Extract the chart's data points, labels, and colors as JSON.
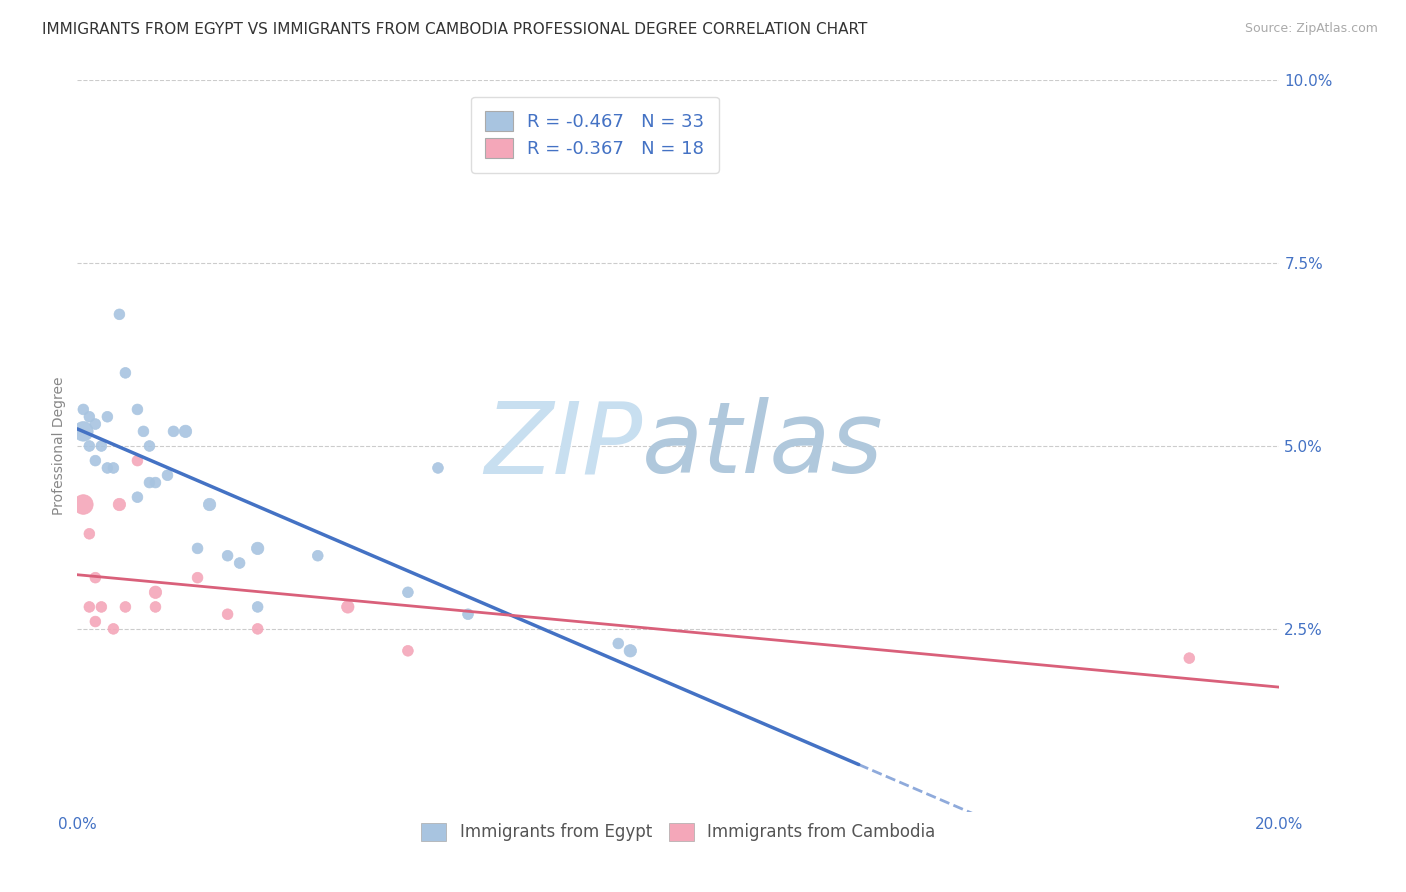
{
  "title": "IMMIGRANTS FROM EGYPT VS IMMIGRANTS FROM CAMBODIA PROFESSIONAL DEGREE CORRELATION CHART",
  "source": "Source: ZipAtlas.com",
  "ylabel": "Professional Degree",
  "watermark_zip": "ZIP",
  "watermark_atlas": "atlas",
  "xlim": [
    0.0,
    0.2
  ],
  "ylim": [
    0.0,
    0.1
  ],
  "right_yticks": [
    0.0,
    0.025,
    0.05,
    0.075,
    0.1
  ],
  "right_yticklabels": [
    "",
    "2.5%",
    "5.0%",
    "7.5%",
    "10.0%"
  ],
  "xticks": [
    0.0,
    0.05,
    0.1,
    0.15,
    0.2
  ],
  "xticklabels": [
    "0.0%",
    "",
    "",
    "",
    "20.0%"
  ],
  "egypt_color": "#a8c4e0",
  "egypt_edge_color": "#7aabcc",
  "egypt_line_color": "#4472c4",
  "cambodia_color": "#f4a7b9",
  "cambodia_edge_color": "#e080a0",
  "cambodia_line_color": "#d9607a",
  "egypt_R": -0.467,
  "egypt_N": 33,
  "cambodia_R": -0.367,
  "cambodia_N": 18,
  "egypt_label": "Immigrants from Egypt",
  "cambodia_label": "Immigrants from Cambodia",
  "egypt_x": [
    0.001,
    0.001,
    0.002,
    0.002,
    0.003,
    0.003,
    0.004,
    0.005,
    0.005,
    0.006,
    0.007,
    0.008,
    0.01,
    0.01,
    0.011,
    0.012,
    0.012,
    0.013,
    0.015,
    0.016,
    0.018,
    0.02,
    0.022,
    0.025,
    0.027,
    0.03,
    0.03,
    0.04,
    0.055,
    0.06,
    0.065,
    0.09,
    0.092
  ],
  "egypt_y": [
    0.055,
    0.052,
    0.054,
    0.05,
    0.053,
    0.048,
    0.05,
    0.054,
    0.047,
    0.047,
    0.068,
    0.06,
    0.055,
    0.043,
    0.052,
    0.045,
    0.05,
    0.045,
    0.046,
    0.052,
    0.052,
    0.036,
    0.042,
    0.035,
    0.034,
    0.036,
    0.028,
    0.035,
    0.03,
    0.047,
    0.027,
    0.023,
    0.022
  ],
  "egypt_sizes": [
    60,
    200,
    60,
    60,
    60,
    60,
    60,
    60,
    60,
    60,
    60,
    60,
    60,
    60,
    60,
    60,
    60,
    60,
    60,
    60,
    80,
    60,
    80,
    60,
    60,
    80,
    60,
    60,
    60,
    60,
    60,
    60,
    80
  ],
  "cambodia_x": [
    0.001,
    0.002,
    0.002,
    0.003,
    0.003,
    0.004,
    0.006,
    0.007,
    0.008,
    0.01,
    0.013,
    0.013,
    0.02,
    0.025,
    0.03,
    0.045,
    0.055,
    0.185
  ],
  "cambodia_y": [
    0.042,
    0.038,
    0.028,
    0.032,
    0.026,
    0.028,
    0.025,
    0.042,
    0.028,
    0.048,
    0.03,
    0.028,
    0.032,
    0.027,
    0.025,
    0.028,
    0.022,
    0.021
  ],
  "cambodia_sizes": [
    200,
    60,
    60,
    60,
    60,
    60,
    60,
    80,
    60,
    60,
    80,
    60,
    60,
    60,
    60,
    80,
    60,
    60
  ],
  "title_fontsize": 11,
  "label_fontsize": 10,
  "tick_fontsize": 11,
  "legend_fontsize": 13,
  "background_color": "#ffffff",
  "grid_color": "#cccccc",
  "title_color": "#333333",
  "axis_label_color": "#888888",
  "tick_label_color": "#4472c4",
  "source_color": "#aaaaaa",
  "egypt_line_x_solid_end": 0.13,
  "egypt_line_x_dashed_end": 0.175
}
